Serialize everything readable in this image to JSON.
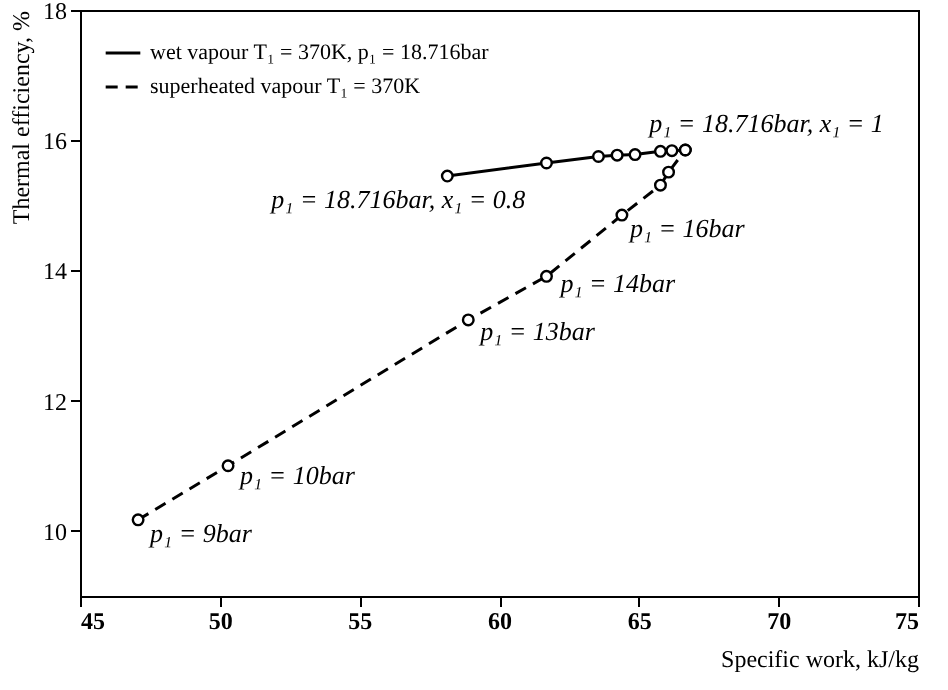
{
  "chart_data": {
    "type": "line",
    "xlabel": "Specific work, kJ/kg",
    "ylabel": "Thermal efficiency, %",
    "xlim": [
      45,
      75
    ],
    "ylim": [
      9,
      18
    ],
    "xticks": [
      45,
      50,
      55,
      60,
      65,
      70,
      75
    ],
    "yticks": [
      10,
      12,
      14,
      16,
      18
    ],
    "legend": "top left",
    "marker": "circle",
    "series": [
      {
        "name": "wet vapour T₁ = 370K, p₁ = 18.716bar",
        "color": "#000000",
        "line_style": "solid",
        "x": [
          58.15,
          61.7,
          63.56,
          64.23,
          64.87,
          65.78,
          66.19,
          66.67
        ],
        "values": [
          15.45,
          15.65,
          15.75,
          15.77,
          15.78,
          15.83,
          15.84,
          15.85
        ]
      },
      {
        "name": "superheated vapour T₁ = 370K",
        "color": "#000000",
        "line_style": "dashed",
        "x": [
          47.08,
          50.3,
          58.9,
          61.7,
          64.4,
          65.78,
          66.07,
          66.67
        ],
        "values": [
          10.17,
          11.0,
          13.24,
          13.91,
          14.85,
          15.31,
          15.51,
          15.85
        ]
      }
    ],
    "annotations": [
      {
        "text": "p₁ = 18.716bar, x₁ = 1",
        "x": 66.67,
        "y": 15.85
      },
      {
        "text": "p₁ = 18.716bar, x₁ = 0.8",
        "x": 58.15,
        "y": 15.45
      },
      {
        "text": "p₁ = 16bar",
        "x": 64.4,
        "y": 14.85
      },
      {
        "text": "p₁ = 14bar",
        "x": 61.7,
        "y": 13.91
      },
      {
        "text": "p₁ = 13bar",
        "x": 58.9,
        "y": 13.24
      },
      {
        "text": "p₁ = 10bar",
        "x": 50.3,
        "y": 11.0
      },
      {
        "text": "p₁ = 9bar",
        "x": 47.08,
        "y": 10.17
      }
    ]
  }
}
